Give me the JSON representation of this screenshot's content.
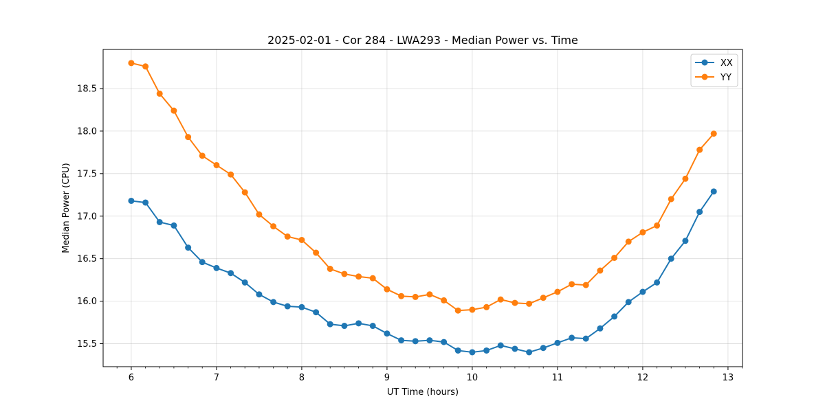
{
  "chart_data": {
    "type": "line",
    "title": "2025-02-01 - Cor 284 - LWA293 - Median Power vs. Time",
    "xlabel": "UT Time (hours)",
    "ylabel": "Median Power (CPU)",
    "xlim": [
      5.67,
      13.17
    ],
    "ylim": [
      15.23,
      18.96
    ],
    "xticks": [
      6,
      7,
      8,
      9,
      10,
      11,
      12,
      13
    ],
    "xtick_labels": [
      "6",
      "7",
      "8",
      "9",
      "10",
      "11",
      "12",
      "13"
    ],
    "yticks": [
      15.5,
      16.0,
      16.5,
      17.0,
      17.5,
      18.0,
      18.5
    ],
    "ytick_labels": [
      "15.5",
      "16.0",
      "16.5",
      "17.0",
      "17.5",
      "18.0",
      "18.5"
    ],
    "grid": true,
    "legend_position": "top-right",
    "x": [
      6.0,
      6.167,
      6.333,
      6.5,
      6.667,
      6.833,
      7.0,
      7.167,
      7.333,
      7.5,
      7.667,
      7.833,
      8.0,
      8.167,
      8.333,
      8.5,
      8.667,
      8.833,
      9.0,
      9.167,
      9.333,
      9.5,
      9.667,
      9.833,
      10.0,
      10.167,
      10.333,
      10.5,
      10.667,
      10.833,
      11.0,
      11.167,
      11.333,
      11.5,
      11.667,
      11.833,
      12.0,
      12.167,
      12.333,
      12.5,
      12.667,
      12.833
    ],
    "series": [
      {
        "name": "XX",
        "color": "#1f77b4",
        "values": [
          17.18,
          17.16,
          16.93,
          16.89,
          16.63,
          16.46,
          16.39,
          16.33,
          16.22,
          16.08,
          15.99,
          15.94,
          15.93,
          15.87,
          15.73,
          15.71,
          15.74,
          15.71,
          15.62,
          15.54,
          15.53,
          15.54,
          15.52,
          15.42,
          15.4,
          15.42,
          15.48,
          15.44,
          15.4,
          15.45,
          15.51,
          15.57,
          15.56,
          15.68,
          15.82,
          15.99,
          16.11,
          16.22,
          16.5,
          16.71,
          17.05,
          17.29
        ]
      },
      {
        "name": "YY",
        "color": "#ff7f0e",
        "values": [
          18.8,
          18.76,
          18.44,
          18.24,
          17.93,
          17.71,
          17.6,
          17.49,
          17.28,
          17.02,
          16.88,
          16.76,
          16.72,
          16.57,
          16.38,
          16.32,
          16.29,
          16.27,
          16.14,
          16.06,
          16.05,
          16.08,
          16.01,
          15.89,
          15.9,
          15.93,
          16.02,
          15.98,
          15.97,
          16.04,
          16.11,
          16.2,
          16.19,
          16.36,
          16.51,
          16.7,
          16.81,
          16.89,
          17.2,
          17.44,
          17.78,
          17.97
        ]
      }
    ]
  }
}
